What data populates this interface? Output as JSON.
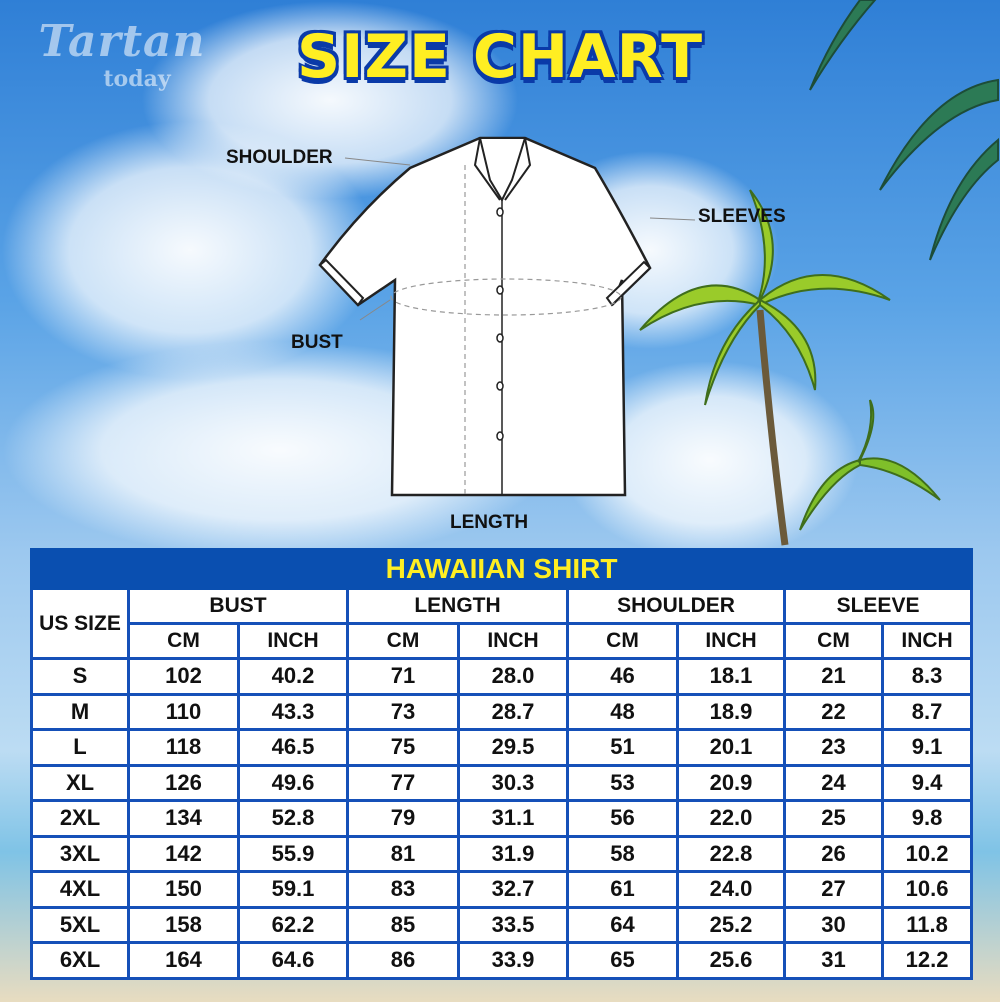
{
  "logo": {
    "line1": "Tartan",
    "line2": "today"
  },
  "title": "SIZE CHART",
  "diagram_labels": {
    "shoulder": "SHOULDER",
    "sleeves": "SLEEVES",
    "bust": "BUST",
    "length": "LENGTH"
  },
  "table": {
    "title": "HAWAIIAN SHIRT",
    "size_header": "US SIZE",
    "groups": [
      "BUST",
      "LENGTH",
      "SHOULDER",
      "SLEEVE"
    ],
    "units": [
      "CM",
      "INCH",
      "CM",
      "INCH",
      "CM",
      "INCH",
      "CM",
      "INCH"
    ],
    "rows": [
      [
        "S",
        "102",
        "40.2",
        "71",
        "28.0",
        "46",
        "18.1",
        "21",
        "8.3"
      ],
      [
        "M",
        "110",
        "43.3",
        "73",
        "28.7",
        "48",
        "18.9",
        "22",
        "8.7"
      ],
      [
        "L",
        "118",
        "46.5",
        "75",
        "29.5",
        "51",
        "20.1",
        "23",
        "9.1"
      ],
      [
        "XL",
        "126",
        "49.6",
        "77",
        "30.3",
        "53",
        "20.9",
        "24",
        "9.4"
      ],
      [
        "2XL",
        "134",
        "52.8",
        "79",
        "31.1",
        "56",
        "22.0",
        "25",
        "9.8"
      ],
      [
        "3XL",
        "142",
        "55.9",
        "81",
        "31.9",
        "58",
        "22.8",
        "26",
        "10.2"
      ],
      [
        "4XL",
        "150",
        "59.1",
        "83",
        "32.7",
        "61",
        "24.0",
        "27",
        "10.6"
      ],
      [
        "5XL",
        "158",
        "62.2",
        "85",
        "33.5",
        "64",
        "25.2",
        "30",
        "11.8"
      ],
      [
        "6XL",
        "164",
        "64.6",
        "86",
        "33.9",
        "65",
        "25.6",
        "31",
        "12.2"
      ]
    ]
  },
  "colors": {
    "table_blue": "#0a4fb0",
    "title_yellow": "#ffee22"
  }
}
